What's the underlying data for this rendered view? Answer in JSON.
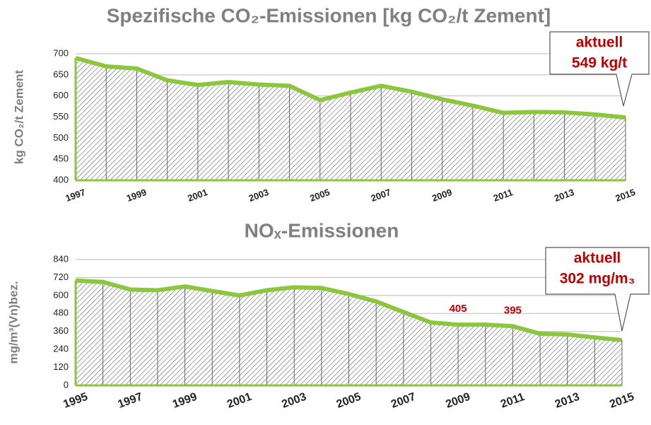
{
  "chart_data": [
    {
      "type": "area",
      "title": "Spezifische CO₂-Emissionen [kg CO₂/t Zement]",
      "y_label": "kg CO₂/t Zement",
      "categories": [
        "1997",
        null,
        "1999",
        null,
        "2001",
        null,
        "2003",
        null,
        "2005",
        null,
        "2007",
        null,
        "2009",
        null,
        "2011",
        null,
        "2013",
        null,
        "2015"
      ],
      "values": [
        690,
        670,
        665,
        637,
        626,
        633,
        627,
        624,
        590,
        608,
        624,
        610,
        592,
        577,
        560,
        562,
        561,
        556,
        549
      ],
      "color": "#8cc63e",
      "ylim": [
        400,
        700
      ],
      "yticks": [
        400,
        450,
        500,
        550,
        600,
        650,
        700
      ],
      "grid": true,
      "annotation": [
        "aktuell",
        "549 kg/t"
      ]
    },
    {
      "type": "area",
      "title": "NOₓ-Emissionen",
      "y_label": "mg/m³(Vn)bez.",
      "categories": [
        "1995",
        null,
        "1997",
        null,
        "1999",
        null,
        "2001",
        null,
        "2003",
        null,
        "2005",
        null,
        "2007",
        null,
        "2009",
        null,
        "2011",
        null,
        "2013",
        null,
        "2015"
      ],
      "values": [
        700,
        690,
        640,
        635,
        660,
        630,
        600,
        635,
        655,
        650,
        610,
        560,
        490,
        420,
        405,
        405,
        395,
        345,
        340,
        320,
        302
      ],
      "value_labels": [
        null,
        null,
        null,
        null,
        null,
        null,
        null,
        null,
        null,
        null,
        null,
        null,
        null,
        null,
        "405",
        null,
        "395",
        null,
        null,
        null,
        null
      ],
      "color": "#8cc63e",
      "ylim": [
        0,
        840
      ],
      "yticks": [
        0,
        120,
        240,
        360,
        480,
        600,
        720,
        840
      ],
      "grid": true,
      "annotation": [
        "aktuell",
        "302 mg/m₃"
      ]
    }
  ]
}
